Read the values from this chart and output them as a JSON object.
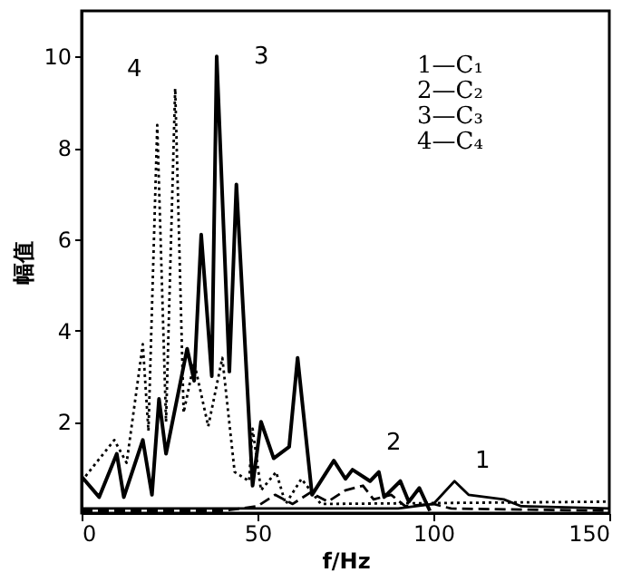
{
  "chart_data": {
    "type": "line",
    "xlabel": "f/Hz",
    "ylabel": "幅值",
    "xlim": [
      0,
      150
    ],
    "xticks": [
      0,
      50,
      100,
      150
    ],
    "ylim": [
      0,
      11
    ],
    "yticks": [
      2,
      4,
      6,
      8,
      10
    ],
    "grid": false,
    "marker": "none",
    "series": [
      {
        "color": "#000000",
        "line_style": "solid",
        "x": [
          0,
          50,
          90,
          100,
          106,
          110,
          120,
          125,
          150
        ],
        "values": [
          0.1,
          0.1,
          0.1,
          0.2,
          0.7,
          0.4,
          0.3,
          0.15,
          0.1
        ]
      },
      {
        "color": "#000000",
        "line_style": "dashed",
        "x": [
          0,
          40,
          50,
          55,
          60,
          65,
          70,
          75,
          80,
          83,
          88,
          92,
          100,
          105,
          150
        ],
        "values": [
          0.05,
          0.05,
          0.15,
          0.4,
          0.2,
          0.45,
          0.25,
          0.5,
          0.6,
          0.3,
          0.4,
          0.15,
          0.2,
          0.1,
          0.05
        ]
      },
      {
        "color": "#000000",
        "line_style": "solid",
        "x": [
          0,
          5,
          10,
          12,
          17.4,
          20,
          22,
          24,
          30,
          32,
          34,
          37,
          38.4,
          42,
          44,
          48.6,
          51,
          54.6,
          59,
          61.4,
          65.5,
          71.7,
          75,
          77,
          82,
          84.5,
          86,
          90.6,
          93,
          96,
          99
        ],
        "values": [
          0.8,
          0.35,
          1.3,
          0.35,
          1.6,
          0.4,
          2.5,
          1.3,
          3.6,
          2.9,
          6.1,
          3.0,
          10.0,
          3.1,
          7.2,
          0.6,
          2.0,
          1.2,
          1.45,
          3.4,
          0.4,
          1.15,
          0.75,
          0.95,
          0.7,
          0.9,
          0.35,
          0.7,
          0.25,
          0.55,
          0.05
        ]
      },
      {
        "color": "#000000",
        "line_style": "dotted",
        "x": [
          0,
          9.3,
          12.8,
          17.4,
          19,
          21.5,
          24,
          26.6,
          29,
          32,
          36,
          40,
          43.5,
          47.6,
          48.6,
          51,
          55.3,
          58,
          62.5,
          68,
          150
        ],
        "values": [
          0.7,
          1.6,
          1.1,
          3.7,
          1.8,
          8.5,
          2.0,
          9.3,
          2.2,
          3.3,
          1.9,
          3.4,
          0.9,
          0.7,
          1.85,
          0.5,
          0.9,
          0.2,
          0.75,
          0.2,
          0.25
        ]
      }
    ],
    "annotations": [
      "1",
      "2",
      "3",
      "4",
      "1—C₁",
      "2—C₂",
      "3—C₃",
      "4—C₄"
    ]
  }
}
